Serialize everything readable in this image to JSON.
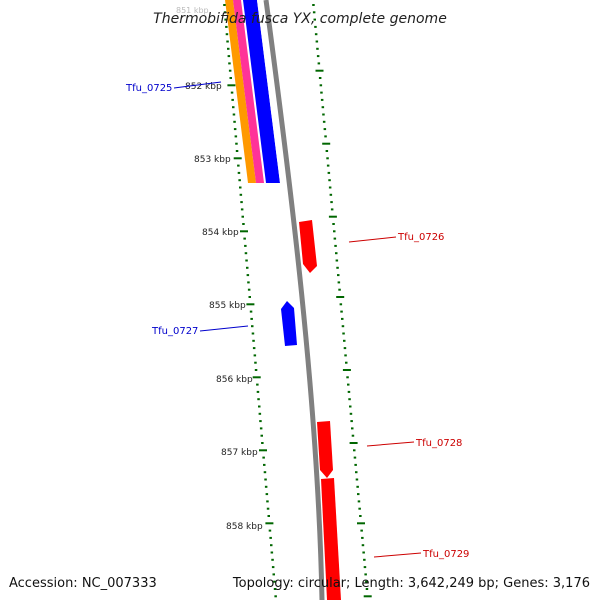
{
  "title": "Thermobifida fusca YX, complete genome",
  "accession_text": "Accession: NC_007333",
  "topology_text": "Topology: circular; Length: 3,642,249 bp; Genes: 3,176",
  "colors": {
    "forward_gene": "#ff0000",
    "reverse_gene": "#0000ff",
    "backbone": "#808080",
    "ticks": "#006600",
    "track_orange": "#ff9900",
    "track_magenta": "#ff3399",
    "track_blue": "#0000ff",
    "track_gray": "#808080"
  },
  "scale": {
    "kbp_labels": [
      "851 kbp",
      "852 kbp",
      "853 kbp",
      "854 kbp",
      "855 kbp",
      "856 kbp",
      "857 kbp",
      "858 kbp"
    ]
  },
  "genes": [
    {
      "name": "Tfu_0725",
      "strand": "reverse",
      "label_side": "left"
    },
    {
      "name": "Tfu_0726",
      "strand": "forward",
      "label_side": "right"
    },
    {
      "name": "Tfu_0727",
      "strand": "reverse",
      "label_side": "left"
    },
    {
      "name": "Tfu_0728",
      "strand": "forward",
      "label_side": "right"
    },
    {
      "name": "Tfu_0729",
      "strand": "forward",
      "label_side": "right"
    }
  ]
}
